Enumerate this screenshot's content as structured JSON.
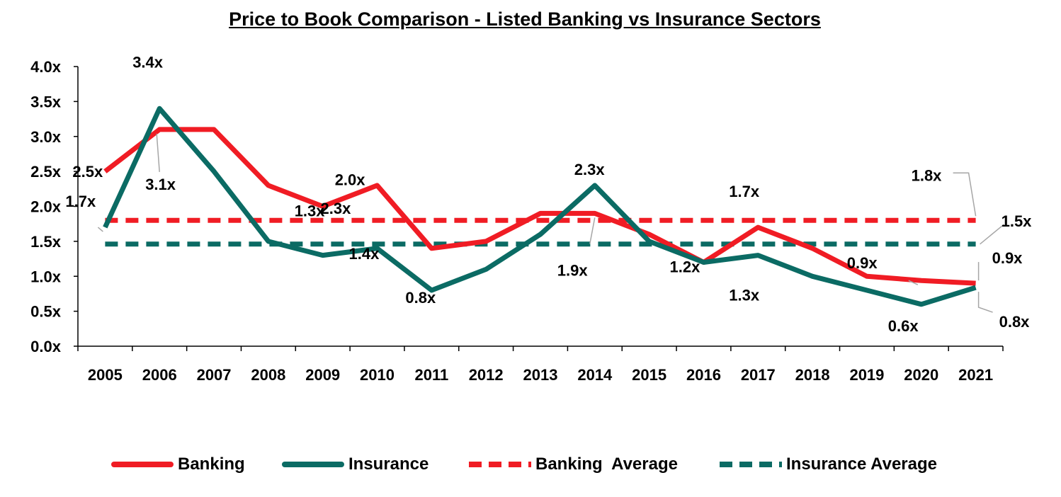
{
  "title": "Price to Book Comparison - Listed Banking vs Insurance Sectors",
  "colors": {
    "banking": "#f01c24",
    "insurance": "#0b6b64",
    "leader": "#a6a6a6",
    "axis": "#000000"
  },
  "chart_data": {
    "type": "line",
    "title": "Price to Book Comparison - Listed Banking vs Insurance Sectors",
    "categories": [
      "2005",
      "2006",
      "2007",
      "2008",
      "2009",
      "2010",
      "2011",
      "2012",
      "2013",
      "2014",
      "2015",
      "2016",
      "2017",
      "2018",
      "2019",
      "2020",
      "2021"
    ],
    "y_ticks": [
      "0.0x",
      "0.5x",
      "1.0x",
      "1.5x",
      "2.0x",
      "2.5x",
      "3.0x",
      "3.5x",
      "4.0x"
    ],
    "ylim": [
      0,
      4
    ],
    "grid": false,
    "legend_position": "bottom",
    "series": [
      {
        "name": "Banking",
        "style": "solid",
        "color": "#f01c24",
        "values": [
          2.5,
          3.1,
          3.1,
          2.3,
          2.0,
          2.3,
          1.4,
          1.5,
          1.9,
          1.9,
          1.6,
          1.2,
          1.7,
          1.4,
          1.0,
          0.94,
          0.9
        ]
      },
      {
        "name": "Insurance",
        "style": "solid",
        "color": "#0b6b64",
        "values": [
          1.7,
          3.4,
          2.5,
          1.5,
          1.3,
          1.4,
          0.8,
          1.1,
          1.6,
          2.3,
          1.5,
          1.2,
          1.3,
          1.0,
          0.8,
          0.6,
          0.84
        ]
      },
      {
        "name": "Banking  Average",
        "style": "dashed",
        "color": "#f01c24",
        "values": [
          1.8,
          1.8,
          1.8,
          1.8,
          1.8,
          1.8,
          1.8,
          1.8,
          1.8,
          1.8,
          1.8,
          1.8,
          1.8,
          1.8,
          1.8,
          1.8,
          1.8
        ]
      },
      {
        "name": "Insurance Average",
        "style": "dashed",
        "color": "#0b6b64",
        "values": [
          1.46,
          1.46,
          1.46,
          1.46,
          1.46,
          1.46,
          1.46,
          1.46,
          1.46,
          1.46,
          1.46,
          1.46,
          1.46,
          1.46,
          1.46,
          1.46,
          1.46
        ]
      }
    ],
    "data_labels": [
      {
        "text": "2.5x",
        "series": "Banking",
        "category": "2005"
      },
      {
        "text": "1.7x",
        "series": "Insurance",
        "category": "2005"
      },
      {
        "text": "3.4x",
        "series": "Insurance",
        "category": "2006"
      },
      {
        "text": "3.1x",
        "series": "Banking",
        "category": "2006"
      },
      {
        "text": "2.0x",
        "series": "Banking",
        "category": "2009"
      },
      {
        "text": "1.3x",
        "series": "Insurance",
        "category": "2009"
      },
      {
        "text": "2.3x",
        "series": "Banking",
        "category": "2010"
      },
      {
        "text": "1.4x",
        "series": "Insurance",
        "category": "2010"
      },
      {
        "text": "0.8x",
        "series": "Insurance",
        "category": "2011"
      },
      {
        "text": "2.3x",
        "series": "Insurance",
        "category": "2014"
      },
      {
        "text": "1.9x",
        "series": "Banking",
        "category": "2014"
      },
      {
        "text": "1.2x",
        "series": "Insurance",
        "category": "2016"
      },
      {
        "text": "1.7x",
        "series": "Banking",
        "category": "2017"
      },
      {
        "text": "1.3x",
        "series": "Insurance",
        "category": "2017"
      },
      {
        "text": "0.9x",
        "series": "Banking",
        "category": "2020"
      },
      {
        "text": "0.6x",
        "series": "Insurance",
        "category": "2020"
      },
      {
        "text": "1.8x",
        "series": "Banking  Average",
        "category": "2021"
      },
      {
        "text": "1.5x",
        "series": "Insurance Average",
        "category": "2021"
      },
      {
        "text": "0.9x",
        "series": "Banking",
        "category": "2021"
      },
      {
        "text": "0.8x",
        "series": "Insurance",
        "category": "2021"
      }
    ]
  }
}
